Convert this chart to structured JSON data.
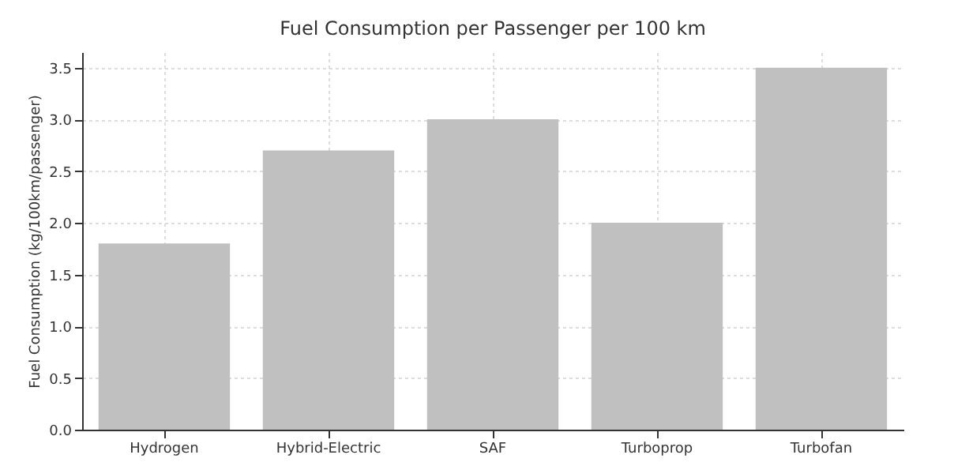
{
  "chart_data": {
    "type": "bar",
    "title": "Fuel Consumption per Passenger per 100 km",
    "ylabel": "Fuel Consumption (kg/100km/passenger)",
    "categories": [
      "Hydrogen",
      "Hybrid-Electric",
      "SAF",
      "Turboprop",
      "Turbofan"
    ],
    "values": [
      1.8,
      2.7,
      3.0,
      2.0,
      3.5
    ],
    "color": "#c0c0c0",
    "ylim": [
      0,
      3.65
    ],
    "yticks": [
      {
        "value": 0,
        "label": "0.0"
      },
      0.5,
      {
        "value": 1,
        "label": "1.0"
      },
      1.5,
      {
        "value": 2,
        "label": "2.0"
      },
      2.5,
      {
        "value": 3,
        "label": "3.0"
      },
      3.5
    ],
    "grid": true
  }
}
